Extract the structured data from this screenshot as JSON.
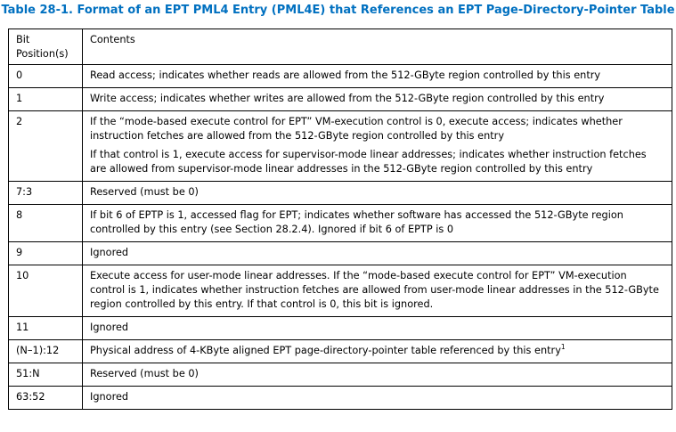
{
  "title": "Table 28-1.  Format of an EPT PML4 Entry (PML4E) that References an EPT Page-Directory-Pointer Table",
  "header": {
    "bit_line1": "Bit",
    "bit_line2": "Position(s)",
    "contents": "Contents"
  },
  "rows": [
    {
      "bit": "0",
      "text": [
        "Read access; indicates whether reads are allowed from the 512-GByte region controlled by this entry"
      ]
    },
    {
      "bit": "1",
      "text": [
        "Write access; indicates whether writes are allowed from the 512-GByte region controlled by this entry"
      ]
    },
    {
      "bit": "2",
      "text": [
        "If the “mode-based execute control for EPT” VM-execution control is 0, execute access; indicates whether instruction fetches are allowed from the 512-GByte region controlled by this entry",
        "If that control is 1, execute access for supervisor-mode linear addresses; indicates whether instruction fetches are allowed from supervisor-mode linear addresses in the 512-GByte region controlled by this entry"
      ]
    },
    {
      "bit": "7:3",
      "text": [
        "Reserved (must be 0)"
      ]
    },
    {
      "bit": "8",
      "text": [
        "If bit 6 of EPTP is 1, accessed flag for EPT; indicates whether software has accessed the 512-GByte region controlled by this entry (see Section 28.2.4). Ignored if bit 6 of EPTP is 0"
      ]
    },
    {
      "bit": "9",
      "text": [
        "Ignored"
      ]
    },
    {
      "bit": "10",
      "text": [
        "Execute access for user-mode linear addresses. If the “mode-based execute control for EPT” VM-execution control is 1, indicates whether instruction fetches are allowed from user-mode linear addresses in the 512-GByte region controlled by this entry. If that control is 0, this bit is ignored."
      ]
    },
    {
      "bit": "11",
      "text": [
        "Ignored"
      ]
    },
    {
      "bit": "(N–1):12",
      "text": [
        "Physical address of 4-KByte aligned EPT page-directory-pointer table referenced by this entry"
      ],
      "footnote": "1"
    },
    {
      "bit": "51:N",
      "text": [
        "Reserved (must be 0)"
      ]
    },
    {
      "bit": "63:52",
      "text": [
        "Ignored"
      ]
    }
  ],
  "colors": {
    "title": "#0070c0",
    "border": "#000000"
  }
}
